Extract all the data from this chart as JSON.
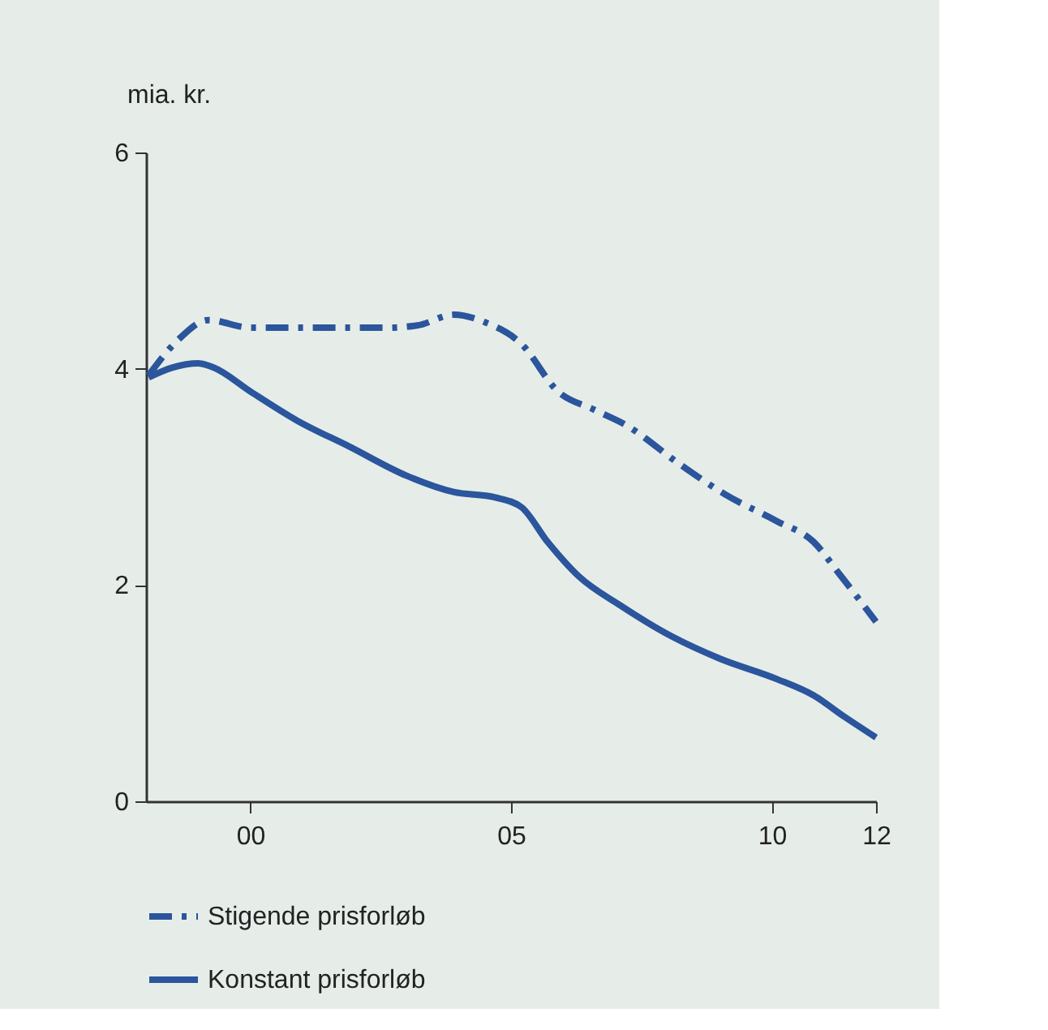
{
  "chart_data": {
    "type": "line",
    "ylabel": "mia. kr.",
    "xlim": [
      1998,
      2012
    ],
    "xticks": [
      {
        "value": 2000,
        "label": "00"
      },
      {
        "value": 2005,
        "label": "05"
      },
      {
        "value": 2010,
        "label": "10"
      },
      {
        "value": 2012,
        "label": "12"
      }
    ],
    "ylim": [
      0,
      6
    ],
    "yticks": [
      0,
      2,
      4,
      6
    ],
    "grid": false,
    "legend": "bottom left",
    "series": [
      {
        "name": "Stigende prisforløb",
        "color": "#2b559c",
        "line_style": "dashdot",
        "x": [
          1998.05,
          1998.6,
          1999.2,
          2000,
          2001.4,
          2002.6,
          2003.2,
          2003.9,
          2004.5,
          2005.2,
          2005.9,
          2006.6,
          2007.2,
          2008.2,
          2009.1,
          2010.1,
          2010.8,
          2011.3,
          2012
        ],
        "values": [
          3.94,
          4.26,
          4.45,
          4.38,
          4.38,
          4.38,
          4.4,
          4.5,
          4.43,
          4.23,
          3.79,
          3.62,
          3.48,
          3.13,
          2.84,
          2.59,
          2.4,
          2.1,
          1.66
        ]
      },
      {
        "name": "Konstant prisforløb",
        "color": "#2b559c",
        "line_style": "solid",
        "x": [
          1998.05,
          1998.5,
          1999,
          1999.3,
          2000,
          2000.9,
          2001.9,
          2003,
          2003.9,
          2004.7,
          2005.2,
          2005.7,
          2006.3,
          2007.1,
          2008.1,
          2009,
          2010.1,
          2010.8,
          2011.4,
          2012
        ],
        "values": [
          3.92,
          4.01,
          4.05,
          4.01,
          3.79,
          3.52,
          3.28,
          3.01,
          2.86,
          2.81,
          2.72,
          2.4,
          2.08,
          1.81,
          1.52,
          1.32,
          1.13,
          0.98,
          0.78,
          0.59
        ]
      }
    ]
  }
}
